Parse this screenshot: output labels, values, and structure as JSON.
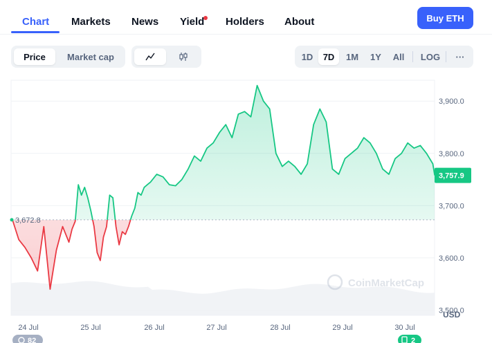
{
  "nav": {
    "tabs": [
      {
        "label": "Chart"
      },
      {
        "label": "Markets"
      },
      {
        "label": "News"
      },
      {
        "label": "Yield"
      },
      {
        "label": "Holders"
      },
      {
        "label": "About"
      }
    ],
    "buy_label": "Buy ETH"
  },
  "toolbar": {
    "price_label": "Price",
    "market_cap_label": "Market cap",
    "line_icon": "line-chart-icon",
    "candle_icon": "candlestick-icon",
    "ranges": [
      "1D",
      "7D",
      "1M",
      "1Y",
      "All"
    ],
    "selected_range": "7D",
    "log_label": "LOG",
    "more_label": "···"
  },
  "chart_data": {
    "type": "line",
    "x_ticks": [
      "24 Jul",
      "25 Jul",
      "26 Jul",
      "27 Jul",
      "28 Jul",
      "29 Jul",
      "30 Jul"
    ],
    "y_ticks": [
      "3,900.0",
      "3,800.0",
      "3,700.0",
      "3,600.0",
      "3,500.0"
    ],
    "y_unit": "USD",
    "ylim": [
      3490,
      3940
    ],
    "reference_label": "3,672.8",
    "reference_value": 3672.8,
    "current_label": "3,757.9",
    "current_value": 3757.9,
    "series": [
      {
        "x": [
          0,
          0.1,
          0.2,
          0.3,
          0.4,
          0.5,
          0.6,
          0.7,
          0.8,
          0.9,
          0.95,
          1.0,
          1.05,
          1.1,
          1.15,
          1.2,
          1.25,
          1.3,
          1.35,
          1.4,
          1.45,
          1.5,
          1.55,
          1.6,
          1.65,
          1.7,
          1.75,
          1.8,
          1.85,
          1.9,
          1.95,
          2.0,
          2.05,
          2.1,
          2.15,
          2.2,
          2.3,
          2.4,
          2.5,
          2.6,
          2.7,
          2.8,
          2.9,
          3.0,
          3.1,
          3.2,
          3.3,
          3.4,
          3.5,
          3.6,
          3.7,
          3.8,
          3.9,
          4.0,
          4.1,
          4.2,
          4.3,
          4.4,
          4.5,
          4.6,
          4.7,
          4.8,
          4.9,
          5.0,
          5.1,
          5.2,
          5.3,
          5.4,
          5.5,
          5.6,
          5.7,
          5.8,
          5.9,
          6.0,
          6.1,
          6.2,
          6.3,
          6.4,
          6.5,
          6.6,
          6.7,
          6.73
        ],
        "values": [
          3672.8,
          3635,
          3620,
          3600,
          3575,
          3660,
          3540,
          3615,
          3660,
          3630,
          3655,
          3670,
          3740,
          3720,
          3735,
          3715,
          3690,
          3660,
          3610,
          3595,
          3640,
          3660,
          3720,
          3715,
          3660,
          3625,
          3650,
          3645,
          3660,
          3680,
          3695,
          3725,
          3720,
          3735,
          3740,
          3745,
          3760,
          3755,
          3740,
          3738,
          3750,
          3770,
          3795,
          3785,
          3810,
          3820,
          3840,
          3855,
          3830,
          3875,
          3880,
          3870,
          3930,
          3900,
          3885,
          3800,
          3775,
          3785,
          3775,
          3760,
          3780,
          3855,
          3885,
          3860,
          3770,
          3760,
          3790,
          3800,
          3810,
          3830,
          3820,
          3800,
          3770,
          3760,
          3790,
          3800,
          3820,
          3810,
          3815,
          3800,
          3780,
          3757.9
        ]
      }
    ],
    "volume": {
      "shown": true
    },
    "watermark": "CoinMarketCap",
    "badges": {
      "left": "82",
      "right": "2"
    }
  },
  "colors": {
    "up": "#16c784",
    "down": "#ea3943",
    "accent": "#3861fb",
    "grid": "#eff2f5",
    "axis_text": "#58667e"
  }
}
